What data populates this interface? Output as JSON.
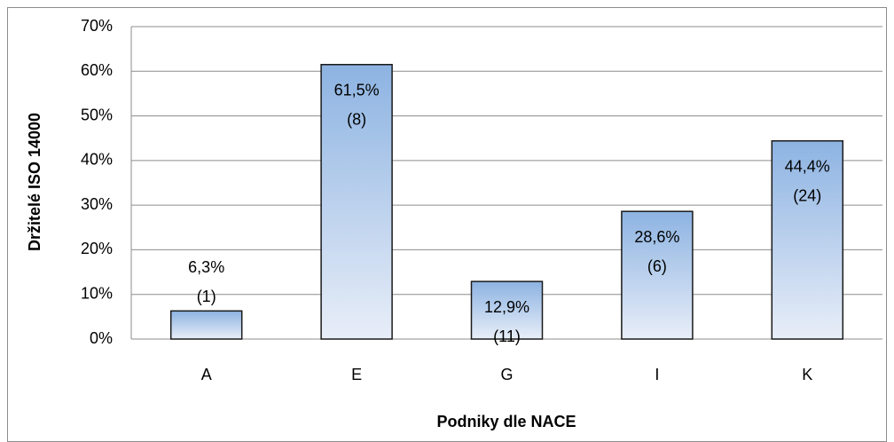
{
  "chart_data": {
    "type": "bar",
    "y_axis_title": "Držitelé ISO 14000",
    "x_axis_title": "Podniky dle NACE",
    "categories": [
      "A",
      "E",
      "G",
      "I",
      "K"
    ],
    "values": [
      6.3,
      61.5,
      12.9,
      28.6,
      44.4
    ],
    "value_labels": [
      "6,3%",
      "61,5%",
      "12,9%",
      "28,6%",
      "44,4%"
    ],
    "count_labels": [
      "(1)",
      "(8)",
      "(11)",
      "(6)",
      "(24)"
    ],
    "color": "#8db3e2",
    "ylim": [
      0,
      70
    ],
    "yticks": [
      {
        "value": 0,
        "label": "0%"
      },
      {
        "value": 10,
        "label": "10%"
      },
      {
        "value": 20,
        "label": "20%"
      },
      {
        "value": 30,
        "label": "30%"
      },
      {
        "value": 40,
        "label": "40%"
      },
      {
        "value": 50,
        "label": "50%"
      },
      {
        "value": 60,
        "label": "60%"
      },
      {
        "value": 70,
        "label": "70%"
      }
    ],
    "grid": true
  }
}
